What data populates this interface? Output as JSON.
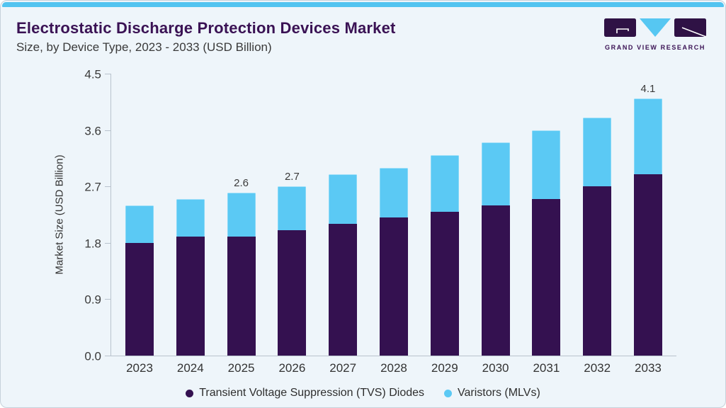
{
  "page": {
    "title": "Electrostatic Discharge Protection Devices Market",
    "subtitle": "Size, by Device Type, 2023 - 2033 (USD Billion)"
  },
  "logo": {
    "text": "GRAND VIEW RESEARCH"
  },
  "colors": {
    "accent_top_strip": "#52C4F0",
    "background": "#EEF5FA",
    "card_border": "#C6D2DB",
    "title_text": "#3A1254",
    "body_text": "#3A3A3A",
    "axis_line": "#B9C3CD",
    "tvs_purple": "#341150",
    "mlv_cyan": "#5BC9F4",
    "logo_purple": "#2F1245"
  },
  "chart_data": {
    "type": "bar",
    "stacked": true,
    "title": "Electrostatic Discharge Protection Devices Market Size, by Device Type, 2023 - 2033 (USD Billion)",
    "xlabel": "",
    "ylabel": "Market Size (USD Billion)",
    "ylim": [
      0,
      4.5
    ],
    "yticks": [
      0.0,
      0.9,
      1.8,
      2.7,
      3.6,
      4.5
    ],
    "grid": false,
    "legend_position": "bottom",
    "categories": [
      "2023",
      "2024",
      "2025",
      "2026",
      "2027",
      "2028",
      "2029",
      "2030",
      "2031",
      "2032",
      "2033"
    ],
    "series": [
      {
        "name": "Transient Voltage Suppression (TVS) Diodes",
        "color": "#341150",
        "values": [
          1.8,
          1.9,
          1.9,
          2.0,
          2.1,
          2.2,
          2.3,
          2.4,
          2.5,
          2.7,
          2.9
        ]
      },
      {
        "name": "Varistors (MLVs)",
        "color": "#5BC9F4",
        "values": [
          0.6,
          0.6,
          0.7,
          0.7,
          0.8,
          0.8,
          0.9,
          1.0,
          1.1,
          1.1,
          1.2
        ]
      }
    ],
    "totals": [
      2.4,
      2.5,
      2.6,
      2.7,
      2.9,
      3.0,
      3.2,
      3.4,
      3.6,
      3.8,
      4.1
    ],
    "total_labels": {
      "2025": "2.6",
      "2026": "2.7",
      "2033": "4.1"
    }
  }
}
